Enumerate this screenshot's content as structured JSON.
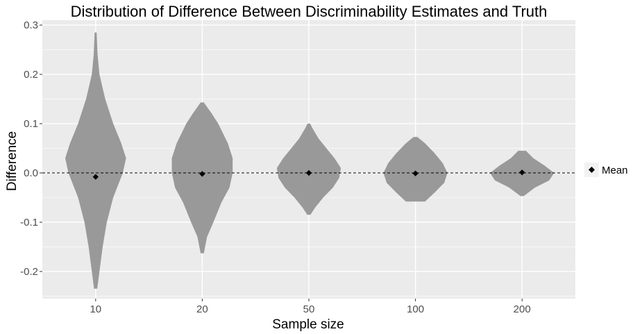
{
  "chart_data": {
    "type": "violin",
    "title": "Distribution of Difference Between Discriminability Estimates and Truth",
    "xlabel": "Sample size",
    "ylabel": "Difference",
    "categories": [
      "10",
      "20",
      "50",
      "100",
      "200"
    ],
    "ylim": [
      -0.255,
      0.31
    ],
    "yticks": [
      -0.2,
      -0.1,
      0.0,
      0.1,
      0.2,
      0.3
    ],
    "ytick_labels": [
      "-0.2",
      "-0.1",
      "0.0",
      "0.1",
      "0.2",
      "0.3"
    ],
    "reference_line": {
      "y": 0.0,
      "style": "dashed",
      "color": "#000000"
    },
    "violins": [
      {
        "category": "10",
        "min": -0.235,
        "max": 0.285,
        "mean": -0.008,
        "profile": [
          [
            -0.235,
            0.05
          ],
          [
            -0.2,
            0.12
          ],
          [
            -0.15,
            0.22
          ],
          [
            -0.1,
            0.35
          ],
          [
            -0.05,
            0.55
          ],
          [
            0.0,
            0.85
          ],
          [
            0.03,
            0.95
          ],
          [
            0.06,
            0.8
          ],
          [
            0.1,
            0.55
          ],
          [
            0.15,
            0.3
          ],
          [
            0.2,
            0.12
          ],
          [
            0.24,
            0.06
          ],
          [
            0.285,
            0.03
          ]
        ]
      },
      {
        "category": "20",
        "min": -0.163,
        "max": 0.143,
        "mean": -0.002,
        "profile": [
          [
            -0.163,
            0.05
          ],
          [
            -0.13,
            0.15
          ],
          [
            -0.1,
            0.35
          ],
          [
            -0.06,
            0.6
          ],
          [
            -0.03,
            0.85
          ],
          [
            0.0,
            0.95
          ],
          [
            0.03,
            0.95
          ],
          [
            0.06,
            0.8
          ],
          [
            0.1,
            0.5
          ],
          [
            0.12,
            0.3
          ],
          [
            0.143,
            0.05
          ]
        ]
      },
      {
        "category": "50",
        "min": -0.085,
        "max": 0.1,
        "mean": 0.0,
        "profile": [
          [
            -0.085,
            0.05
          ],
          [
            -0.07,
            0.2
          ],
          [
            -0.05,
            0.45
          ],
          [
            -0.03,
            0.75
          ],
          [
            -0.01,
            0.95
          ],
          [
            0.01,
            1.0
          ],
          [
            0.03,
            0.8
          ],
          [
            0.05,
            0.55
          ],
          [
            0.07,
            0.3
          ],
          [
            0.09,
            0.12
          ],
          [
            0.1,
            0.04
          ]
        ]
      },
      {
        "category": "100",
        "min": -0.058,
        "max": 0.073,
        "mean": -0.001,
        "profile": [
          [
            -0.058,
            0.3
          ],
          [
            -0.04,
            0.6
          ],
          [
            -0.02,
            0.9
          ],
          [
            0.0,
            1.0
          ],
          [
            0.02,
            0.85
          ],
          [
            0.04,
            0.6
          ],
          [
            0.06,
            0.3
          ],
          [
            0.073,
            0.06
          ]
        ]
      },
      {
        "category": "200",
        "min": -0.047,
        "max": 0.045,
        "mean": 0.001,
        "profile": [
          [
            -0.047,
            0.05
          ],
          [
            -0.03,
            0.4
          ],
          [
            -0.015,
            0.85
          ],
          [
            0.0,
            1.0
          ],
          [
            0.015,
            0.7
          ],
          [
            0.03,
            0.35
          ],
          [
            0.045,
            0.12
          ]
        ]
      }
    ],
    "fill_color": "#999999",
    "panel_background": "#ebebeb",
    "grid": true,
    "legend": {
      "placement": "right",
      "entries": [
        {
          "label": "Mean",
          "marker": "diamond",
          "color": "#000000"
        }
      ]
    }
  }
}
